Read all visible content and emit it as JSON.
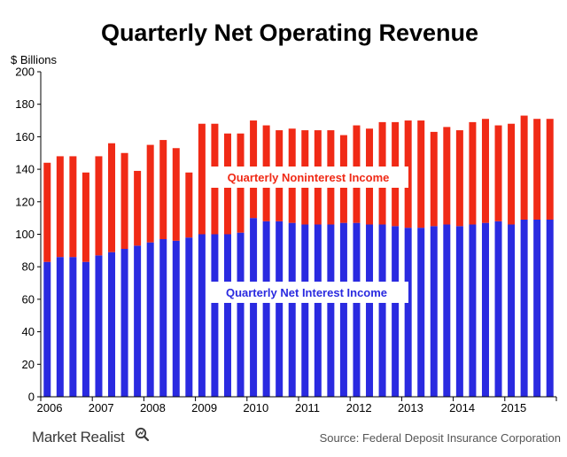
{
  "chart_data": {
    "type": "bar",
    "stacked": true,
    "title": "Quarterly Net Operating Revenue",
    "ylabel": "$ Billions",
    "xlabel": "",
    "ylim": [
      0,
      200
    ],
    "yticks": [
      0,
      20,
      40,
      60,
      80,
      100,
      120,
      140,
      160,
      180,
      200
    ],
    "year_labels": [
      "2006",
      "2007",
      "2008",
      "2009",
      "2010",
      "2011",
      "2012",
      "2013",
      "2014",
      "2015"
    ],
    "categories": [
      "2006Q1",
      "2006Q2",
      "2006Q3",
      "2006Q4",
      "2007Q1",
      "2007Q2",
      "2007Q3",
      "2007Q4",
      "2008Q1",
      "2008Q2",
      "2008Q3",
      "2008Q4",
      "2009Q1",
      "2009Q2",
      "2009Q3",
      "2009Q4",
      "2010Q1",
      "2010Q2",
      "2010Q3",
      "2010Q4",
      "2011Q1",
      "2011Q2",
      "2011Q3",
      "2011Q4",
      "2012Q1",
      "2012Q2",
      "2012Q3",
      "2012Q4",
      "2013Q1",
      "2013Q2",
      "2013Q3",
      "2013Q4",
      "2014Q1",
      "2014Q2",
      "2014Q3",
      "2014Q4",
      "2015Q1",
      "2015Q2",
      "2015Q3",
      "2015Q4"
    ],
    "series": [
      {
        "name": "Quarterly Net Interest Income",
        "color": "#2a2ae0",
        "values": [
          83,
          86,
          86,
          83,
          87,
          89,
          91,
          93,
          95,
          97,
          96,
          98,
          100,
          100,
          100,
          101,
          110,
          108,
          108,
          107,
          106,
          106,
          106,
          107,
          107,
          106,
          106,
          105,
          104,
          104,
          105,
          106,
          105,
          106,
          107,
          108,
          106,
          109,
          109,
          109
        ]
      },
      {
        "name": "Quarterly Noninterest Income",
        "color": "#f02a16",
        "values": [
          61,
          62,
          62,
          55,
          61,
          67,
          59,
          46,
          60,
          61,
          57,
          40,
          68,
          68,
          62,
          61,
          60,
          59,
          56,
          58,
          58,
          58,
          58,
          54,
          60,
          59,
          63,
          64,
          66,
          66,
          58,
          60,
          59,
          63,
          64,
          59,
          62,
          64,
          62,
          62
        ]
      }
    ],
    "annotations": {
      "upper_label": "Quarterly Noninterest Income",
      "lower_label": "Quarterly Net Interest Income"
    },
    "source": "Source: Federal Deposit Insurance Corporation"
  },
  "brand": {
    "name": "Market Realist",
    "icon": "magnifier-icon"
  }
}
